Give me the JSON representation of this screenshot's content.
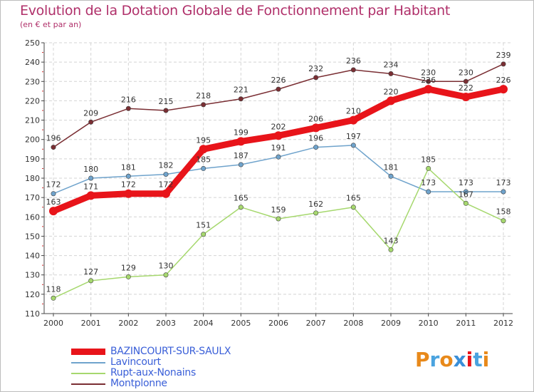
{
  "title": "Evolution de la Dotation Globale de Fonctionnement par Habitant",
  "subtitle": "(en € et par an)",
  "logo_text": "Proxiti",
  "chart_data": {
    "type": "line",
    "categories": [
      "2000",
      "2001",
      "2002",
      "2003",
      "2004",
      "2005",
      "2006",
      "2007",
      "2008",
      "2009",
      "2010",
      "2011",
      "2012"
    ],
    "ylim": [
      110,
      250
    ],
    "yticks": [
      110,
      120,
      130,
      140,
      150,
      160,
      170,
      180,
      190,
      200,
      210,
      220,
      230,
      240,
      250
    ],
    "grid": true,
    "legend_position": "bottom-left",
    "series": [
      {
        "name": "BAZINCOURT-SUR-SAULX",
        "color": "#e8141a",
        "values": [
          163,
          171,
          172,
          172,
          195,
          199,
          202,
          206,
          210,
          220,
          226,
          222,
          226
        ]
      },
      {
        "name": "Lavincourt",
        "color": "#6fa3cc",
        "values": [
          172,
          180,
          181,
          182,
          185,
          187,
          191,
          196,
          197,
          181,
          173,
          173,
          173
        ]
      },
      {
        "name": "Rupt-aux-Nonains",
        "color": "#a6d86e",
        "values": [
          118,
          127,
          129,
          130,
          151,
          165,
          159,
          162,
          165,
          143,
          185,
          167,
          158
        ]
      },
      {
        "name": "Montplonne",
        "color": "#7a2e33",
        "values": [
          196,
          209,
          216,
          215,
          218,
          221,
          226,
          232,
          236,
          234,
          230,
          230,
          239
        ]
      }
    ]
  }
}
